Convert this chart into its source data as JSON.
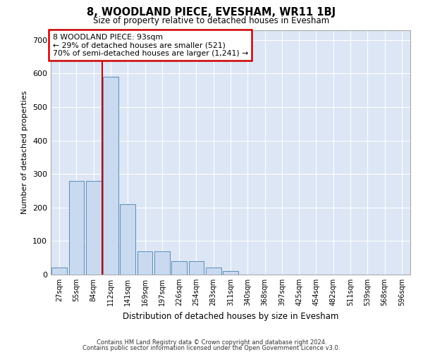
{
  "title": "8, WOODLAND PIECE, EVESHAM, WR11 1BJ",
  "subtitle": "Size of property relative to detached houses in Evesham",
  "xlabel": "Distribution of detached houses by size in Evesham",
  "ylabel": "Number of detached properties",
  "footnote1": "Contains HM Land Registry data © Crown copyright and database right 2024.",
  "footnote2": "Contains public sector information licensed under the Open Government Licence v3.0.",
  "annotation_line1": "8 WOODLAND PIECE: 93sqm",
  "annotation_line2": "← 29% of detached houses are smaller (521)",
  "annotation_line3": "70% of semi-detached houses are larger (1,241) →",
  "bar_color": "#c9d9f0",
  "bar_edge_color": "#5b8db8",
  "line_color": "#cc0000",
  "background_color": "#dce6f5",
  "categories": [
    "27sqm",
    "55sqm",
    "84sqm",
    "112sqm",
    "141sqm",
    "169sqm",
    "197sqm",
    "226sqm",
    "254sqm",
    "283sqm",
    "311sqm",
    "340sqm",
    "368sqm",
    "397sqm",
    "425sqm",
    "454sqm",
    "482sqm",
    "511sqm",
    "539sqm",
    "568sqm",
    "596sqm"
  ],
  "values": [
    20,
    280,
    280,
    590,
    210,
    70,
    70,
    40,
    40,
    20,
    10,
    0,
    0,
    0,
    0,
    0,
    0,
    0,
    0,
    0,
    0
  ],
  "ylim": [
    0,
    730
  ],
  "yticks": [
    0,
    100,
    200,
    300,
    400,
    500,
    600,
    700
  ],
  "red_line_x": 2.5,
  "figsize": [
    6.0,
    5.0
  ],
  "dpi": 100
}
